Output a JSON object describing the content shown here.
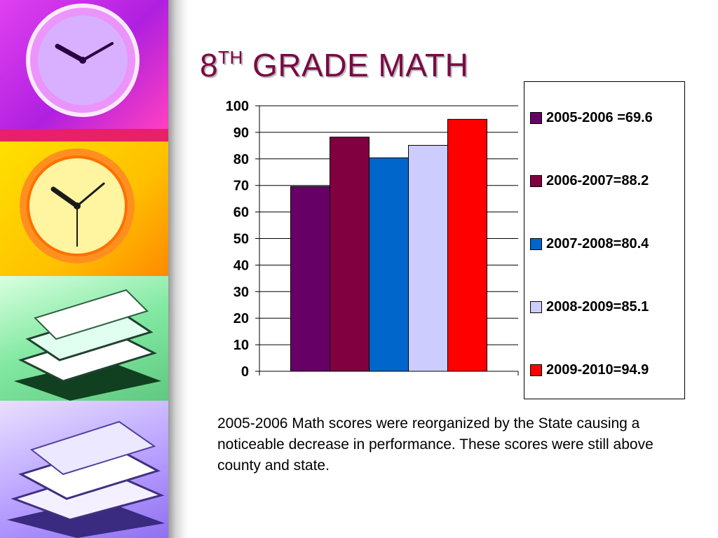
{
  "slide": {
    "title_main": "8",
    "title_sup": "TH",
    "title_rest": " GRADE MATH",
    "caption": "2005-2006 Math scores were reorganized by the State causing a noticeable decrease in performance.  These scores were still above county and state."
  },
  "decor": {
    "panels": [
      "purple-clock-photo",
      "red-band",
      "yellow-clock-photo",
      "green-books-photo",
      "purple-books-photo"
    ]
  },
  "chart_data": {
    "type": "bar",
    "title": "",
    "xlabel": "",
    "ylabel": "",
    "ylim": [
      0,
      100
    ],
    "yticks": [
      "0",
      "10",
      "20",
      "30",
      "40",
      "50",
      "60",
      "70",
      "80",
      "90",
      "100"
    ],
    "grid": true,
    "legend_position": "right",
    "series": [
      {
        "name": "2005-2006 =69.6",
        "value": 69.6,
        "color": "#660066"
      },
      {
        "name": "2006-2007=88.2",
        "value": 88.2,
        "color": "#800040"
      },
      {
        "name": "2007-2008=80.4",
        "value": 80.4,
        "color": "#0066cc"
      },
      {
        "name": "2008-2009=85.1",
        "value": 85.1,
        "color": "#ccccff"
      },
      {
        "name": "2009-2010=94.9",
        "value": 94.9,
        "color": "#ff0000"
      }
    ]
  }
}
